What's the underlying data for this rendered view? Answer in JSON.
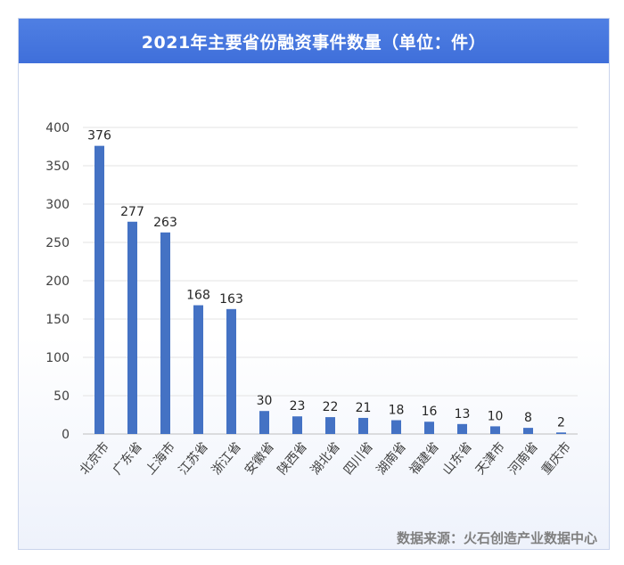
{
  "chart_data": {
    "type": "bar",
    "title": "2021年主要省份融资事件数量（单位：件）",
    "categories": [
      "北京市",
      "广东省",
      "上海市",
      "江苏省",
      "浙江省",
      "安徽省",
      "陕西省",
      "湖北省",
      "四川省",
      "湖南省",
      "福建省",
      "山东省",
      "天津市",
      "河南省",
      "重庆市"
    ],
    "values": [
      376,
      277,
      263,
      168,
      163,
      30,
      23,
      22,
      21,
      18,
      16,
      13,
      10,
      8,
      2
    ],
    "ylim": [
      0,
      400
    ],
    "yticks": [
      0,
      50,
      100,
      150,
      200,
      250,
      300,
      350,
      400
    ],
    "xlabel": "",
    "ylabel": "",
    "grid": true,
    "legend": "none",
    "bar_color": "#4472c4",
    "title_bar_color": "#4a7ae0"
  },
  "source_note": "数据来源：火石创造产业数据中心"
}
